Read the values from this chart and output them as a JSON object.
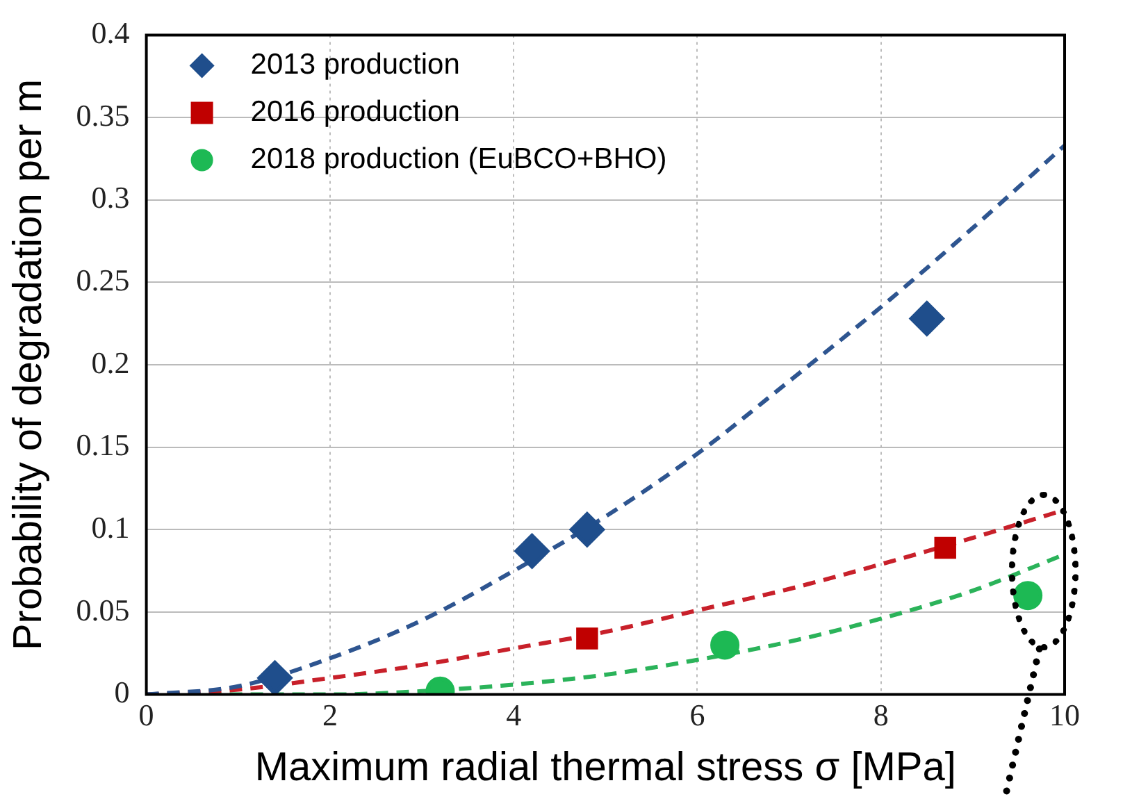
{
  "chart_data": {
    "type": "scatter",
    "xlabel": "Maximum radial thermal stress σ [MPa]",
    "ylabel": "Probability of degradation per m",
    "xlim": [
      0,
      10
    ],
    "xticks": [
      0,
      2,
      4,
      6,
      8,
      10
    ],
    "ylim": [
      0,
      0.4
    ],
    "yticks": [
      0,
      0.05,
      0.1,
      0.15,
      0.2,
      0.25,
      0.3,
      0.35,
      0.4
    ],
    "grid": true,
    "legend": "top left",
    "series": [
      {
        "name": "2013 production",
        "marker": "diamond",
        "color": "#1f4e8c",
        "x": [
          1.4,
          4.2,
          4.8,
          8.5
        ],
        "values": [
          0.01,
          0.087,
          0.1,
          0.228
        ]
      },
      {
        "name": "2016 production",
        "marker": "square",
        "color": "#c00000",
        "x": [
          4.8,
          8.7
        ],
        "values": [
          0.034,
          0.089
        ]
      },
      {
        "name": "2018 production (EuBCO+BHO)",
        "marker": "circle",
        "color": "#1db954",
        "x": [
          3.2,
          6.3,
          9.6
        ],
        "values": [
          0.002,
          0.03,
          0.06
        ]
      },
      {
        "type": "line",
        "line_style": "dashed",
        "marker": "none",
        "color": "#2e5590",
        "x": [
          0,
          1,
          2,
          3,
          4,
          5,
          6,
          7,
          8,
          9,
          10
        ],
        "values": [
          0,
          0.005,
          0.022,
          0.045,
          0.075,
          0.108,
          0.146,
          0.19,
          0.235,
          0.283,
          0.333
        ]
      },
      {
        "type": "line",
        "line_style": "dashed",
        "marker": "none",
        "color": "#c8202a",
        "x": [
          0,
          1,
          2,
          3,
          4,
          5,
          6,
          7,
          8,
          9,
          10
        ],
        "values": [
          0,
          0.003,
          0.01,
          0.018,
          0.028,
          0.038,
          0.051,
          0.064,
          0.079,
          0.095,
          0.112
        ]
      },
      {
        "type": "line",
        "line_style": "dashed",
        "marker": "none",
        "color": "#2bb35a",
        "x": [
          0,
          2,
          3,
          4,
          5,
          6,
          7,
          8,
          9,
          10
        ],
        "values": [
          0,
          0,
          0.002,
          0.006,
          0.012,
          0.021,
          0.032,
          0.046,
          0.063,
          0.085
        ]
      }
    ]
  }
}
